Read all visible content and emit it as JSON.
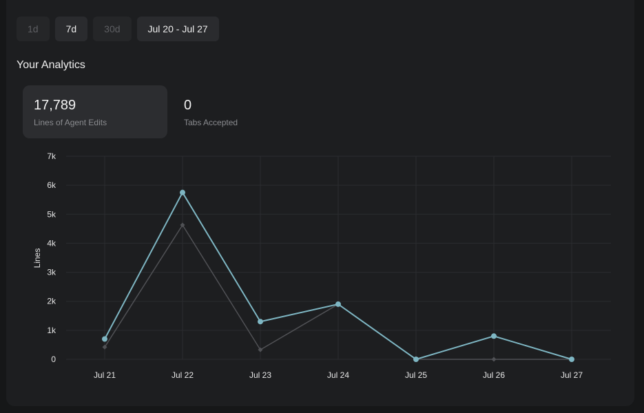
{
  "range_buttons": [
    {
      "label": "1d",
      "active": false
    },
    {
      "label": "7d",
      "active": true
    },
    {
      "label": "30d",
      "active": false
    }
  ],
  "date_range": "Jul 20 - Jul 27",
  "section_title": "Your Analytics",
  "stats": [
    {
      "value": "17,789",
      "label": "Lines of Agent Edits",
      "active": true
    },
    {
      "value": "0",
      "label": "Tabs Accepted",
      "active": false
    }
  ],
  "colors": {
    "primary_series": "#7eb6c3",
    "secondary_series": "#505155",
    "grid": "#2b2c2f"
  },
  "chart_data": {
    "type": "line",
    "ylabel": "Lines",
    "xlabel": "",
    "categories": [
      "Jul 21",
      "Jul 22",
      "Jul 23",
      "Jul 24",
      "Jul 25",
      "Jul 26",
      "Jul 27"
    ],
    "yticks": [
      "0",
      "1k",
      "2k",
      "3k",
      "4k",
      "5k",
      "6k",
      "7k"
    ],
    "ylim": [
      0,
      7000
    ],
    "grid": true,
    "series": [
      {
        "values": [
          700,
          5750,
          1300,
          1900,
          0,
          800,
          0
        ],
        "markers": "circle",
        "style": "primary"
      },
      {
        "values": [
          420,
          4630,
          330,
          1900,
          0,
          0,
          0
        ],
        "markers": "diamond",
        "style": "secondary"
      }
    ]
  }
}
